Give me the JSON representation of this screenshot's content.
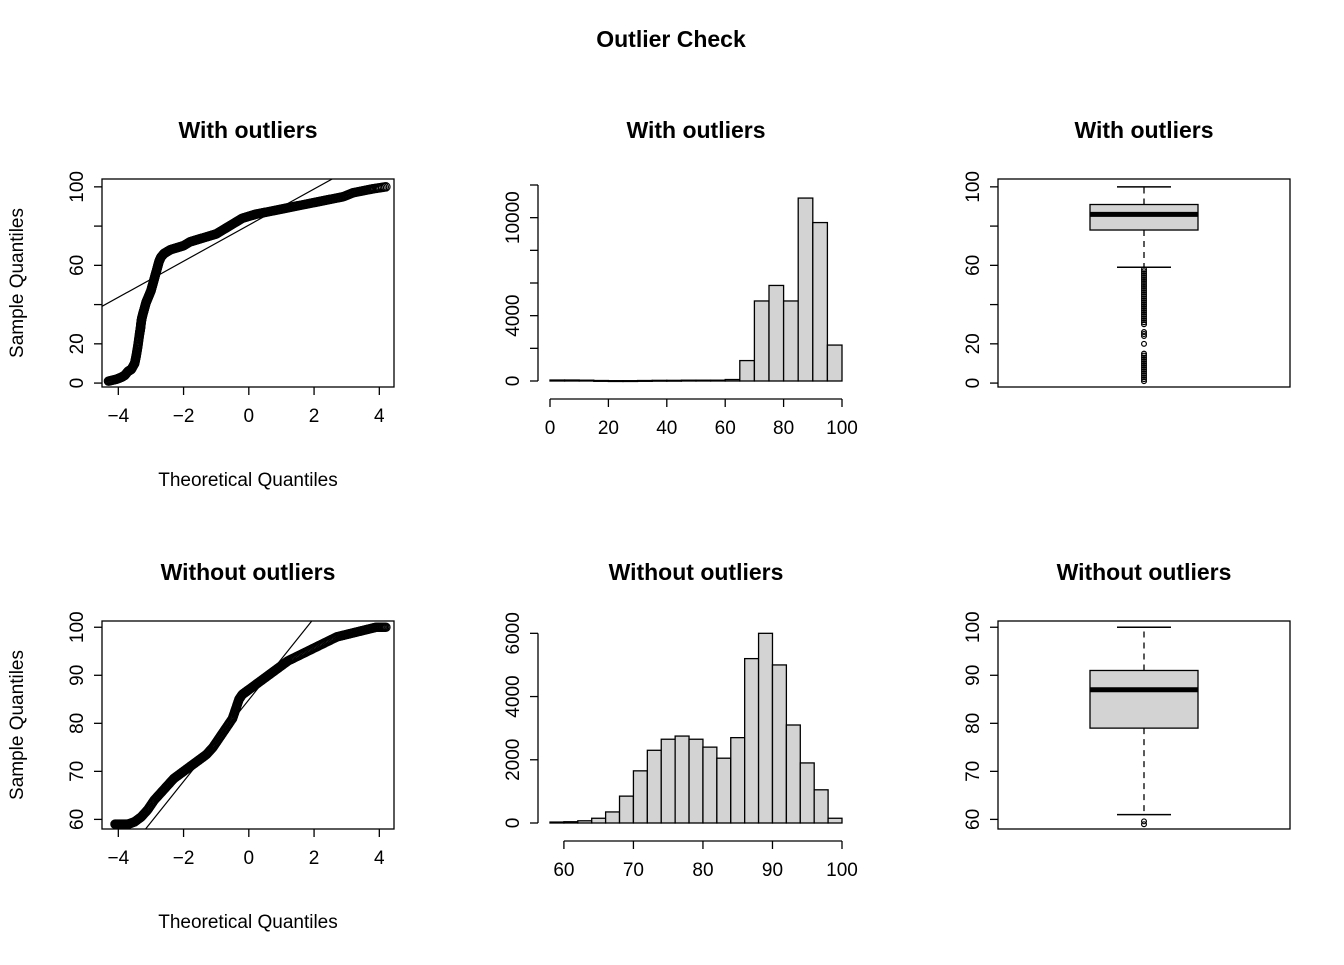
{
  "figure": {
    "title": "Outlier Check"
  },
  "chart_data": [
    {
      "type": "scatter",
      "subtype": "qq-plot",
      "title": "With outliers",
      "xlabel": "Theoretical Quantiles",
      "ylabel": "Sample Quantiles",
      "xlim": [
        -4.5,
        4.45
      ],
      "ylim": [
        -2,
        104
      ],
      "xticks": [
        -4,
        -2,
        0,
        2,
        4
      ],
      "yticks": [
        0,
        20,
        40,
        60,
        80,
        100
      ],
      "ytick_labels": [
        "0",
        "20",
        "",
        "60",
        "",
        "100"
      ],
      "points": {
        "x": [
          -4.3,
          -4.05,
          -3.9,
          -3.8,
          -3.7,
          -3.6,
          -3.5,
          -3.45,
          -3.4,
          -3.35,
          -3.32,
          -3.3,
          -3.28,
          -3.25,
          -3.2,
          -3.15,
          -3.1,
          -3.05,
          -3.0,
          -2.95,
          -2.9,
          -2.85,
          -2.8,
          -2.75,
          -2.7,
          -2.6,
          -2.5,
          -2.4,
          -2.2,
          -2.0,
          -1.8,
          -1.6,
          -1.4,
          -1.2,
          -1.0,
          -0.8,
          -0.6,
          -0.4,
          -0.2,
          0.0,
          0.2,
          0.5,
          0.8,
          1.1,
          1.4,
          1.7,
          2.0,
          2.3,
          2.6,
          2.9,
          3.2,
          3.5,
          3.8,
          4.2
        ],
        "y": [
          1,
          2,
          3,
          4,
          6,
          7,
          10,
          14,
          19,
          25,
          28,
          31,
          33,
          35,
          38,
          41,
          43,
          45,
          47,
          50,
          53,
          56,
          59,
          62,
          64,
          66,
          67,
          68,
          69,
          70,
          72,
          73,
          74,
          75,
          76,
          78,
          80,
          82,
          84,
          85,
          86,
          87,
          88,
          89,
          90,
          91,
          92,
          93,
          94,
          95,
          97,
          98,
          99,
          100
        ]
      },
      "reference_line": {
        "intercept": 80.5,
        "slope": 9.2
      }
    },
    {
      "type": "bar",
      "subtype": "histogram",
      "title": "With outliers",
      "xlim": [
        0,
        100
      ],
      "ylim": [
        0,
        12000
      ],
      "xticks": [
        0,
        20,
        40,
        60,
        80,
        100
      ],
      "yticks": [
        0,
        2000,
        4000,
        6000,
        8000,
        10000,
        12000
      ],
      "ytick_labels": [
        "0",
        "",
        "4000",
        "",
        "",
        "10000",
        ""
      ],
      "bin_edges": [
        0,
        5,
        10,
        15,
        20,
        25,
        30,
        35,
        40,
        45,
        50,
        55,
        60,
        65,
        70,
        75,
        80,
        85,
        90,
        95,
        100
      ],
      "counts": [
        60,
        60,
        50,
        30,
        20,
        20,
        30,
        40,
        40,
        50,
        50,
        50,
        90,
        1250,
        4900,
        5850,
        4900,
        11200,
        9700,
        2200
      ]
    },
    {
      "type": "box",
      "title": "With outliers",
      "ylim": [
        -2,
        104
      ],
      "yticks": [
        0,
        20,
        40,
        60,
        80,
        100
      ],
      "ytick_labels": [
        "0",
        "20",
        "",
        "60",
        "",
        "100"
      ],
      "stats": {
        "min": 59,
        "q1": 78,
        "median": 86,
        "q3": 91,
        "max": 100
      },
      "outliers": [
        58,
        57,
        56,
        55,
        54,
        53,
        52,
        51,
        50,
        49,
        48,
        47,
        46,
        45,
        44,
        43,
        42,
        41,
        40,
        39,
        38,
        37,
        36,
        35,
        34,
        33,
        32,
        31,
        30,
        26,
        25,
        24,
        20,
        15,
        14,
        13,
        12,
        11,
        10,
        9,
        8,
        7,
        6,
        5,
        4,
        3,
        2,
        1
      ]
    },
    {
      "type": "scatter",
      "subtype": "qq-plot",
      "title": "Without outliers",
      "xlabel": "Theoretical Quantiles",
      "ylabel": "Sample Quantiles",
      "xlim": [
        -4.5,
        4.45
      ],
      "ylim": [
        58,
        101.3
      ],
      "xticks": [
        -4,
        -2,
        0,
        2,
        4
      ],
      "yticks": [
        60,
        70,
        80,
        90,
        100
      ],
      "ytick_labels": [
        "60",
        "70",
        "80",
        "90",
        "100"
      ],
      "points": {
        "x": [
          -4.1,
          -3.9,
          -3.7,
          -3.5,
          -3.3,
          -3.1,
          -2.9,
          -2.7,
          -2.5,
          -2.3,
          -2.1,
          -1.9,
          -1.7,
          -1.5,
          -1.3,
          -1.1,
          -0.9,
          -0.7,
          -0.5,
          -0.4,
          -0.3,
          -0.2,
          -0.1,
          0.0,
          0.2,
          0.4,
          0.6,
          0.8,
          1.0,
          1.2,
          1.5,
          1.8,
          2.1,
          2.4,
          2.7,
          3.0,
          3.3,
          3.6,
          3.9,
          4.2
        ],
        "y": [
          59,
          59,
          59,
          59.5,
          60.5,
          62,
          64,
          65.5,
          67,
          68.5,
          69.5,
          70.5,
          71.5,
          72.5,
          73.5,
          75,
          77,
          79,
          81,
          83,
          85,
          86,
          86.5,
          87,
          88,
          89,
          90,
          91,
          92,
          93,
          94,
          95,
          96,
          97,
          98,
          98.5,
          99,
          99.5,
          100,
          100
        ]
      },
      "reference_line": {
        "intercept": 84.9,
        "slope": 8.5
      }
    },
    {
      "type": "bar",
      "subtype": "histogram",
      "title": "Without outliers",
      "xlim": [
        58,
        100
      ],
      "ylim": [
        0,
        6200
      ],
      "xticks": [
        60,
        70,
        80,
        90,
        100
      ],
      "yticks": [
        0,
        2000,
        4000,
        6000
      ],
      "ytick_labels": [
        "0",
        "2000",
        "4000",
        "6000"
      ],
      "bin_edges": [
        58,
        60,
        62,
        64,
        66,
        68,
        70,
        72,
        74,
        76,
        78,
        80,
        82,
        84,
        86,
        88,
        90,
        92,
        94,
        96,
        98,
        100
      ],
      "counts": [
        30,
        40,
        70,
        150,
        350,
        850,
        1650,
        2300,
        2650,
        2750,
        2650,
        2400,
        2050,
        2700,
        5200,
        6000,
        5000,
        3100,
        1900,
        1050,
        150
      ]
    },
    {
      "type": "box",
      "title": "Without outliers",
      "ylim": [
        58,
        101.3
      ],
      "yticks": [
        60,
        70,
        80,
        90,
        100
      ],
      "ytick_labels": [
        "60",
        "70",
        "80",
        "90",
        "100"
      ],
      "stats": {
        "min": 61,
        "q1": 79,
        "median": 87,
        "q3": 91,
        "max": 100
      },
      "outliers": [
        59.6,
        59
      ]
    }
  ]
}
